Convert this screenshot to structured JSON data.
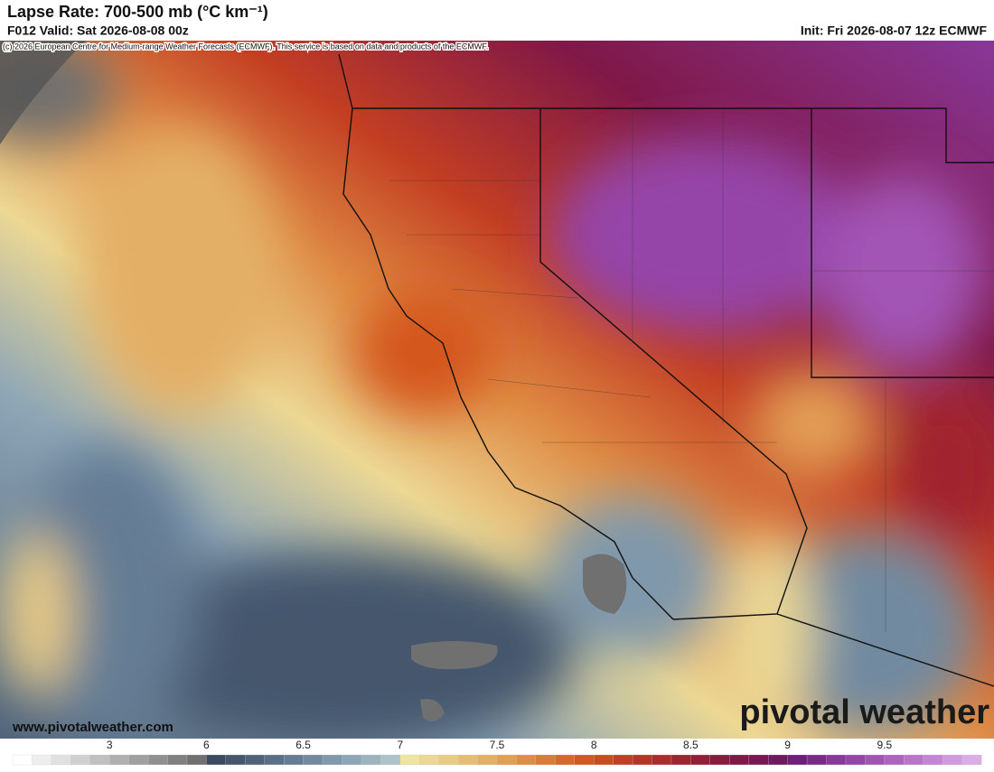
{
  "header": {
    "title": "Lapse Rate: 700-500 mb (°C km⁻¹)",
    "valid": "F012 Valid: Sat 2026-08-08 00z",
    "init": "Init: Fri 2026-08-07 12z ECMWF",
    "credit": "(c) 2026 European Centre for Medium-range Weather Forecasts (ECMWF). This service is based on data and products of the ECMWF."
  },
  "footer": {
    "website": "www.pivotalweather.com",
    "logo": "pivotal weather"
  },
  "colorbar": {
    "ticks": [
      3,
      6,
      6.5,
      7,
      7.5,
      8,
      8.5,
      9,
      9.5
    ],
    "colors": [
      "#ffffff",
      "#eeeeee",
      "#e0e0e0",
      "#d0d0d0",
      "#c0c0c0",
      "#b0b0b0",
      "#a0a0a0",
      "#909090",
      "#808080",
      "#707070",
      "#3b4a5e",
      "#45566d",
      "#4f637a",
      "#5a7088",
      "#657d94",
      "#718aa0",
      "#7f98ab",
      "#8ea6b6",
      "#9db4c0",
      "#aec3c8",
      "#efe3a0",
      "#ecd894",
      "#e8cb85",
      "#e5bd75",
      "#e3af66",
      "#e29e55",
      "#df8c45",
      "#dc7a37",
      "#d8682a",
      "#d4571f",
      "#cc4a1f",
      "#c33e22",
      "#b83426",
      "#ac2b2b",
      "#a0232f",
      "#951e36",
      "#8a1a3e",
      "#801847",
      "#771852",
      "#6f1a5e",
      "#6e1f7a",
      "#7b2a8a",
      "#88379a",
      "#9545a8",
      "#a254b5",
      "#ae64c0",
      "#ba75cb",
      "#c587d5",
      "#d09ade",
      "#dbade6"
    ]
  }
}
